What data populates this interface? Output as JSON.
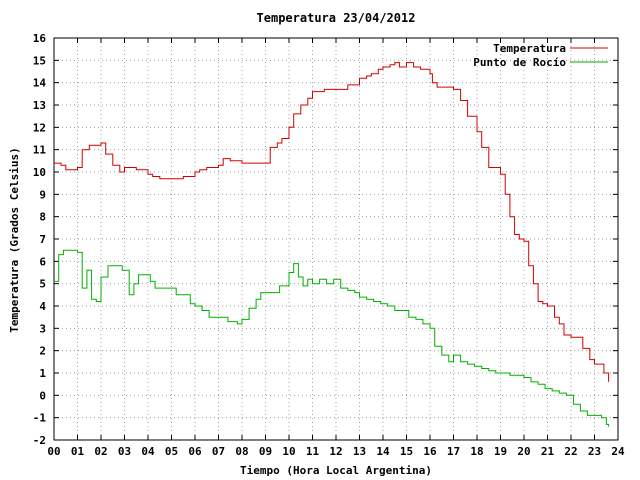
{
  "chart_data": {
    "type": "line",
    "title": "Temperatura 23/04/2012",
    "xlabel": "Tiempo (Hora Local Argentina)",
    "ylabel": "Temperatura (Grados Celsius)",
    "xlim": [
      0,
      24
    ],
    "ylim": [
      -2,
      16
    ],
    "grid": true,
    "legend_position": "top-right",
    "x_ticks": [
      "00",
      "01",
      "02",
      "03",
      "04",
      "05",
      "06",
      "07",
      "08",
      "09",
      "10",
      "11",
      "12",
      "13",
      "14",
      "15",
      "16",
      "17",
      "18",
      "19",
      "20",
      "21",
      "22",
      "23",
      "24"
    ],
    "y_ticks": [
      -2,
      -1,
      0,
      1,
      2,
      3,
      4,
      5,
      6,
      7,
      8,
      9,
      10,
      11,
      12,
      13,
      14,
      15,
      16
    ],
    "series": [
      {
        "name": "Temperatura",
        "color": "#d00000",
        "x": [
          0.0,
          0.3,
          0.5,
          1.0,
          1.2,
          1.5,
          2.0,
          2.2,
          2.5,
          2.8,
          3.0,
          3.2,
          3.5,
          4.0,
          4.2,
          4.5,
          5.0,
          5.5,
          6.0,
          6.2,
          6.5,
          7.0,
          7.2,
          7.5,
          8.0,
          8.5,
          9.0,
          9.2,
          9.5,
          9.7,
          10.0,
          10.2,
          10.5,
          10.8,
          11.0,
          11.5,
          12.0,
          12.5,
          13.0,
          13.3,
          13.5,
          13.8,
          14.0,
          14.3,
          14.5,
          14.7,
          15.0,
          15.3,
          15.6,
          16.0,
          16.1,
          16.3,
          16.5,
          16.7,
          17.0,
          17.3,
          17.6,
          17.8,
          18.0,
          18.2,
          18.5,
          18.8,
          19.0,
          19.2,
          19.4,
          19.6,
          19.8,
          20.0,
          20.2,
          20.4,
          20.6,
          20.8,
          21.0,
          21.3,
          21.5,
          21.7,
          22.0,
          22.2,
          22.5,
          22.8,
          23.0,
          23.2,
          23.4,
          23.6
        ],
        "y": [
          10.4,
          10.3,
          10.1,
          10.2,
          11.0,
          11.2,
          11.3,
          10.8,
          10.3,
          10.0,
          10.2,
          10.2,
          10.1,
          9.9,
          9.8,
          9.7,
          9.7,
          9.8,
          10.0,
          10.1,
          10.2,
          10.3,
          10.6,
          10.5,
          10.4,
          10.4,
          10.4,
          11.1,
          11.3,
          11.5,
          12.0,
          12.6,
          13.0,
          13.3,
          13.6,
          13.7,
          13.7,
          13.9,
          14.2,
          14.3,
          14.4,
          14.6,
          14.7,
          14.8,
          14.9,
          14.7,
          14.9,
          14.7,
          14.6,
          14.4,
          14.0,
          13.8,
          13.8,
          13.8,
          13.7,
          13.2,
          12.5,
          12.5,
          11.8,
          11.1,
          10.2,
          10.2,
          9.9,
          9.0,
          8.0,
          7.2,
          7.0,
          6.9,
          5.8,
          5.0,
          4.2,
          4.1,
          4.0,
          3.5,
          3.2,
          2.7,
          2.6,
          2.6,
          2.1,
          1.6,
          1.4,
          1.4,
          1.0,
          0.6
        ]
      },
      {
        "name": "Punto de Rocío",
        "color": "#00b000",
        "x": [
          0.0,
          0.2,
          0.4,
          0.8,
          1.0,
          1.2,
          1.4,
          1.6,
          1.8,
          2.0,
          2.3,
          2.6,
          2.9,
          3.2,
          3.4,
          3.6,
          3.9,
          4.1,
          4.3,
          4.6,
          4.9,
          5.2,
          5.5,
          5.8,
          6.0,
          6.3,
          6.6,
          7.0,
          7.4,
          7.8,
          8.0,
          8.3,
          8.6,
          8.8,
          9.0,
          9.3,
          9.6,
          9.8,
          10.0,
          10.2,
          10.4,
          10.6,
          10.8,
          11.0,
          11.3,
          11.6,
          11.9,
          12.2,
          12.5,
          12.8,
          13.0,
          13.3,
          13.6,
          13.9,
          14.2,
          14.5,
          14.8,
          15.1,
          15.4,
          15.7,
          16.0,
          16.2,
          16.5,
          16.8,
          17.0,
          17.3,
          17.6,
          17.9,
          18.2,
          18.5,
          18.8,
          19.1,
          19.4,
          19.7,
          20.0,
          20.3,
          20.6,
          20.9,
          21.2,
          21.5,
          21.8,
          22.1,
          22.4,
          22.7,
          23.0,
          23.3,
          23.5,
          23.6
        ],
        "y": [
          5.1,
          6.3,
          6.5,
          6.5,
          6.4,
          4.8,
          5.6,
          4.3,
          4.2,
          5.3,
          5.8,
          5.8,
          5.6,
          4.5,
          5.0,
          5.4,
          5.4,
          5.1,
          4.8,
          4.8,
          4.8,
          4.5,
          4.5,
          4.1,
          4.0,
          3.8,
          3.5,
          3.5,
          3.3,
          3.2,
          3.4,
          3.9,
          4.3,
          4.6,
          4.6,
          4.6,
          4.9,
          4.9,
          5.5,
          5.9,
          5.3,
          4.9,
          5.2,
          5.0,
          5.2,
          5.0,
          5.2,
          4.8,
          4.7,
          4.6,
          4.4,
          4.3,
          4.2,
          4.1,
          4.0,
          3.8,
          3.8,
          3.5,
          3.4,
          3.2,
          3.0,
          2.2,
          1.8,
          1.5,
          1.8,
          1.5,
          1.4,
          1.3,
          1.2,
          1.1,
          1.0,
          1.0,
          0.9,
          0.9,
          0.8,
          0.6,
          0.5,
          0.3,
          0.2,
          0.1,
          0.0,
          -0.4,
          -0.7,
          -0.9,
          -0.9,
          -1.0,
          -1.3,
          -1.4
        ]
      }
    ]
  }
}
